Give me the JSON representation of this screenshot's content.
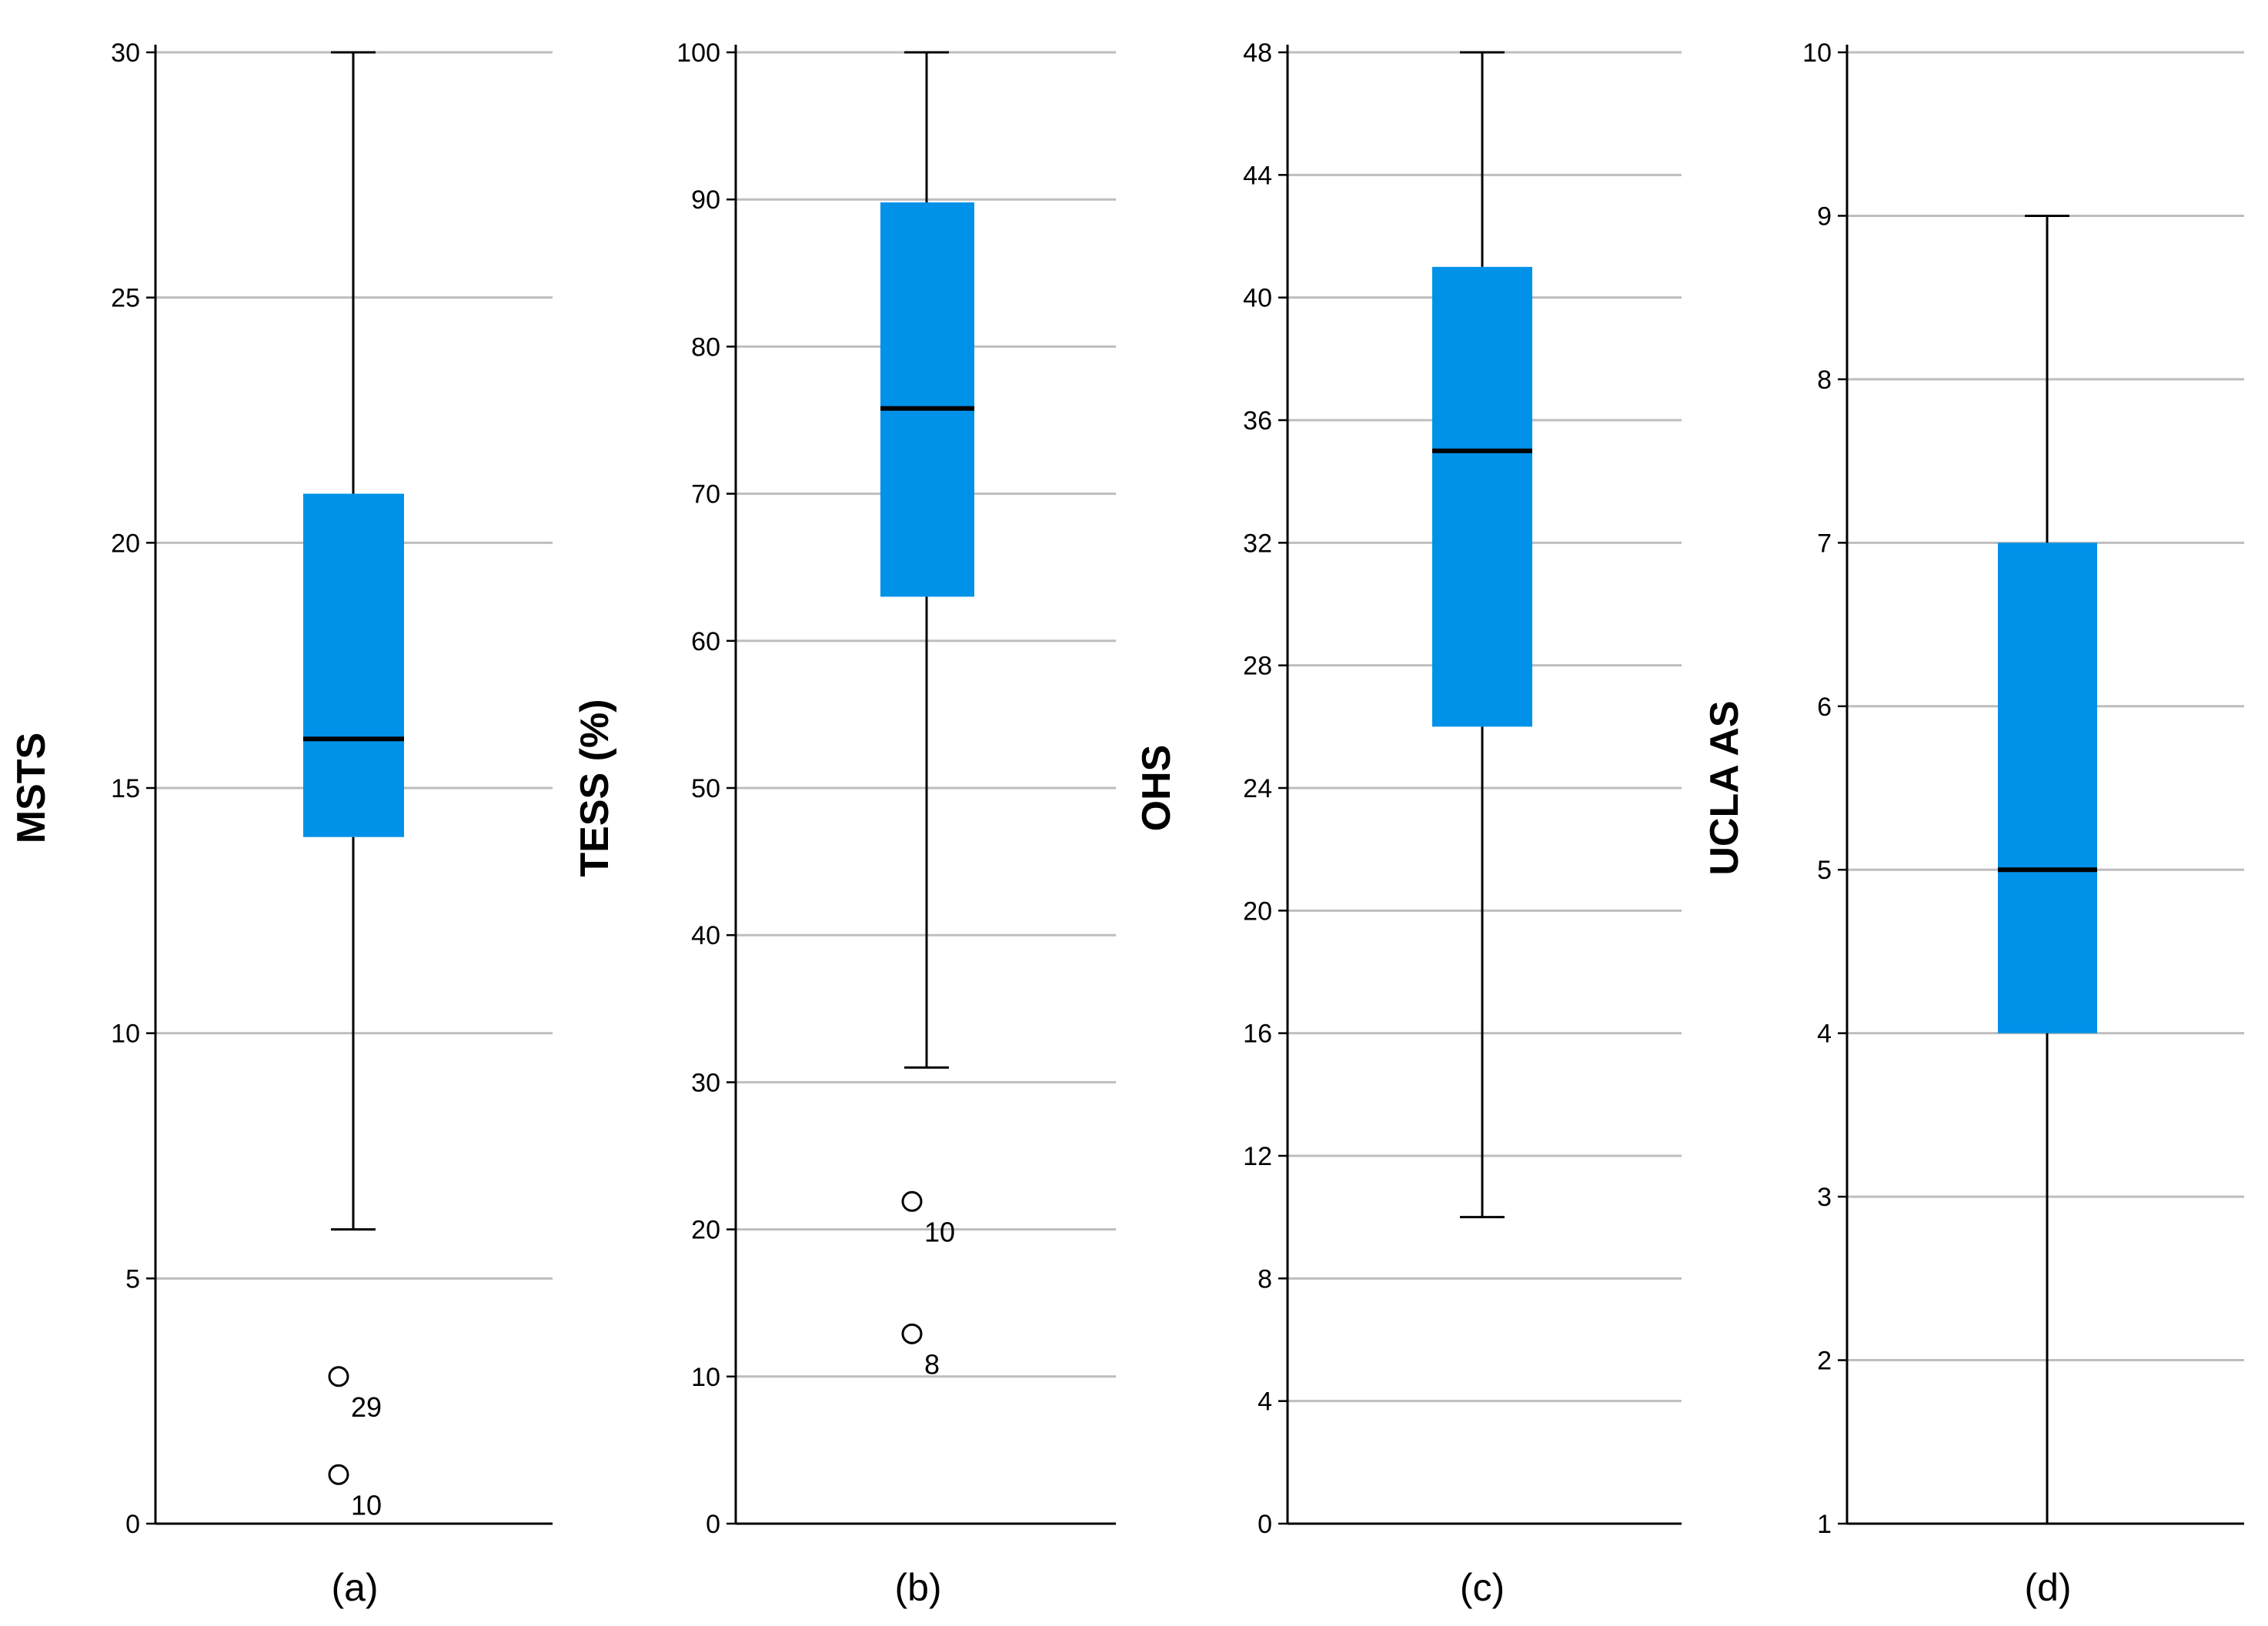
{
  "colors": {
    "box_fill": "#0091E8",
    "grid": "#BEBEBE",
    "axis": "#000000",
    "median": "#000000",
    "whisker": "#000000"
  },
  "chart_data": [
    {
      "type": "box",
      "panel_label": "(a)",
      "ylabel": "MSTS",
      "ylim": [
        0,
        30
      ],
      "yticks": [
        0,
        5,
        10,
        15,
        20,
        25,
        30
      ],
      "grid": true,
      "box": {
        "whisker_low": 6,
        "q1": 14,
        "median": 16,
        "q3": 21,
        "whisker_high": 30
      },
      "outliers": [
        {
          "value": 3,
          "label": "29"
        },
        {
          "value": 1,
          "label": "10"
        }
      ]
    },
    {
      "type": "box",
      "panel_label": "(b)",
      "ylabel": "TESS (%)",
      "ylim": [
        0,
        100
      ],
      "yticks": [
        0,
        10,
        20,
        30,
        40,
        50,
        60,
        70,
        80,
        90,
        100
      ],
      "grid": true,
      "box": {
        "whisker_low": 31,
        "q1": 63,
        "median": 75.8,
        "q3": 89.8,
        "whisker_high": 100
      },
      "outliers": [
        {
          "value": 21.9,
          "label": "10"
        },
        {
          "value": 12.9,
          "label": "8"
        }
      ]
    },
    {
      "type": "box",
      "panel_label": "(c)",
      "ylabel": "OHS",
      "ylim": [
        0,
        48
      ],
      "yticks": [
        0,
        4,
        8,
        12,
        16,
        20,
        24,
        28,
        32,
        36,
        40,
        44,
        48
      ],
      "grid": true,
      "box": {
        "whisker_low": 10,
        "q1": 26,
        "median": 35,
        "q3": 41,
        "whisker_high": 48
      },
      "outliers": []
    },
    {
      "type": "box",
      "panel_label": "(d)",
      "ylabel": "UCLA AS",
      "ylim": [
        1,
        10
      ],
      "yticks": [
        1,
        2,
        3,
        4,
        5,
        6,
        7,
        8,
        9,
        10
      ],
      "grid": true,
      "box": {
        "whisker_low": 1,
        "q1": 4,
        "median": 5,
        "q3": 7,
        "whisker_high": 9
      },
      "outliers": []
    }
  ]
}
